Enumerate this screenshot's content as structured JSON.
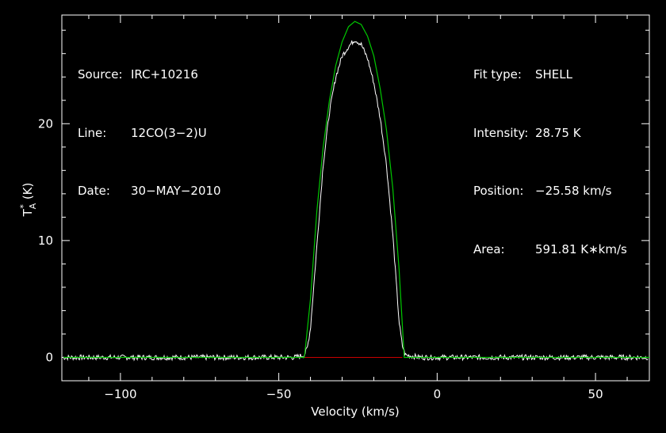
{
  "header_left": {
    "source_label": "Source:",
    "source": "IRC+10216",
    "line_label": "Line:",
    "line": "12CO(3−2)U",
    "date_label": "Date:",
    "date": "30−MAY−2010"
  },
  "header_right": {
    "fit_label": "Fit type:",
    "fit": "SHELL",
    "intensity_label": "Intensity:",
    "intensity": "28.75 K",
    "position_label": "Position:",
    "position": "−25.58 km/s",
    "area_label": "Area:",
    "area": "591.81 K∗km/s"
  },
  "colors": {
    "background": "#000000",
    "axes": "#ffffff",
    "spectrum": "#ffffff",
    "fit": "#00c800",
    "baseline": "#c80000"
  },
  "chart_data": {
    "type": "line",
    "xlabel": "Velocity (km/s)",
    "ylabel_main": "T",
    "ylabel_sup": "*",
    "ylabel_sub": "A",
    "ylabel_unit": "(K)",
    "xlim": [
      -118.5,
      67
    ],
    "ylim": [
      -2,
      29.3
    ],
    "xticks": [
      -100,
      -50,
      0,
      50
    ],
    "xtick_labels": [
      "−100",
      "−50",
      "0",
      "50"
    ],
    "yticks": [
      0,
      10,
      20
    ],
    "ytick_labels": [
      "0",
      "10",
      "20"
    ],
    "grid": false,
    "spectrum": {
      "name": "observed",
      "x": [
        -118,
        -110,
        -100,
        -90,
        -80,
        -70,
        -60,
        -50,
        -45,
        -42,
        -41,
        -40,
        -38,
        -36,
        -34,
        -32,
        -30,
        -28,
        -26,
        -24,
        -22,
        -20,
        -18,
        -16,
        -14,
        -12,
        -11,
        -10,
        -5,
        0,
        10,
        20,
        30,
        40,
        50,
        60,
        67
      ],
      "y": [
        0,
        0,
        0,
        0,
        0,
        0,
        0,
        0,
        0,
        0.2,
        0.8,
        2.5,
        9.5,
        16.5,
        21.0,
        24.0,
        25.8,
        26.6,
        27.2,
        26.8,
        25.6,
        23.5,
        20.5,
        16.5,
        10.5,
        3.0,
        1.0,
        0.2,
        0,
        0,
        0,
        0,
        0,
        0,
        0,
        0,
        0
      ]
    },
    "fit": {
      "name": "SHELL fit",
      "x": [
        -118,
        -42,
        -41.8,
        -40,
        -38,
        -36,
        -34,
        -32,
        -30,
        -28,
        -26,
        -24,
        -22,
        -20,
        -18,
        -16,
        -14,
        -12,
        -10.5,
        -10.4,
        67
      ],
      "y": [
        0,
        0,
        0.3,
        5.0,
        12.5,
        18.0,
        22.0,
        25.0,
        27.0,
        28.3,
        28.75,
        28.5,
        27.5,
        25.8,
        23.0,
        19.5,
        14.5,
        7.5,
        0.5,
        0,
        0
      ]
    },
    "baseline": {
      "x": [
        -42,
        -11
      ],
      "y": [
        0,
        0
      ]
    }
  }
}
